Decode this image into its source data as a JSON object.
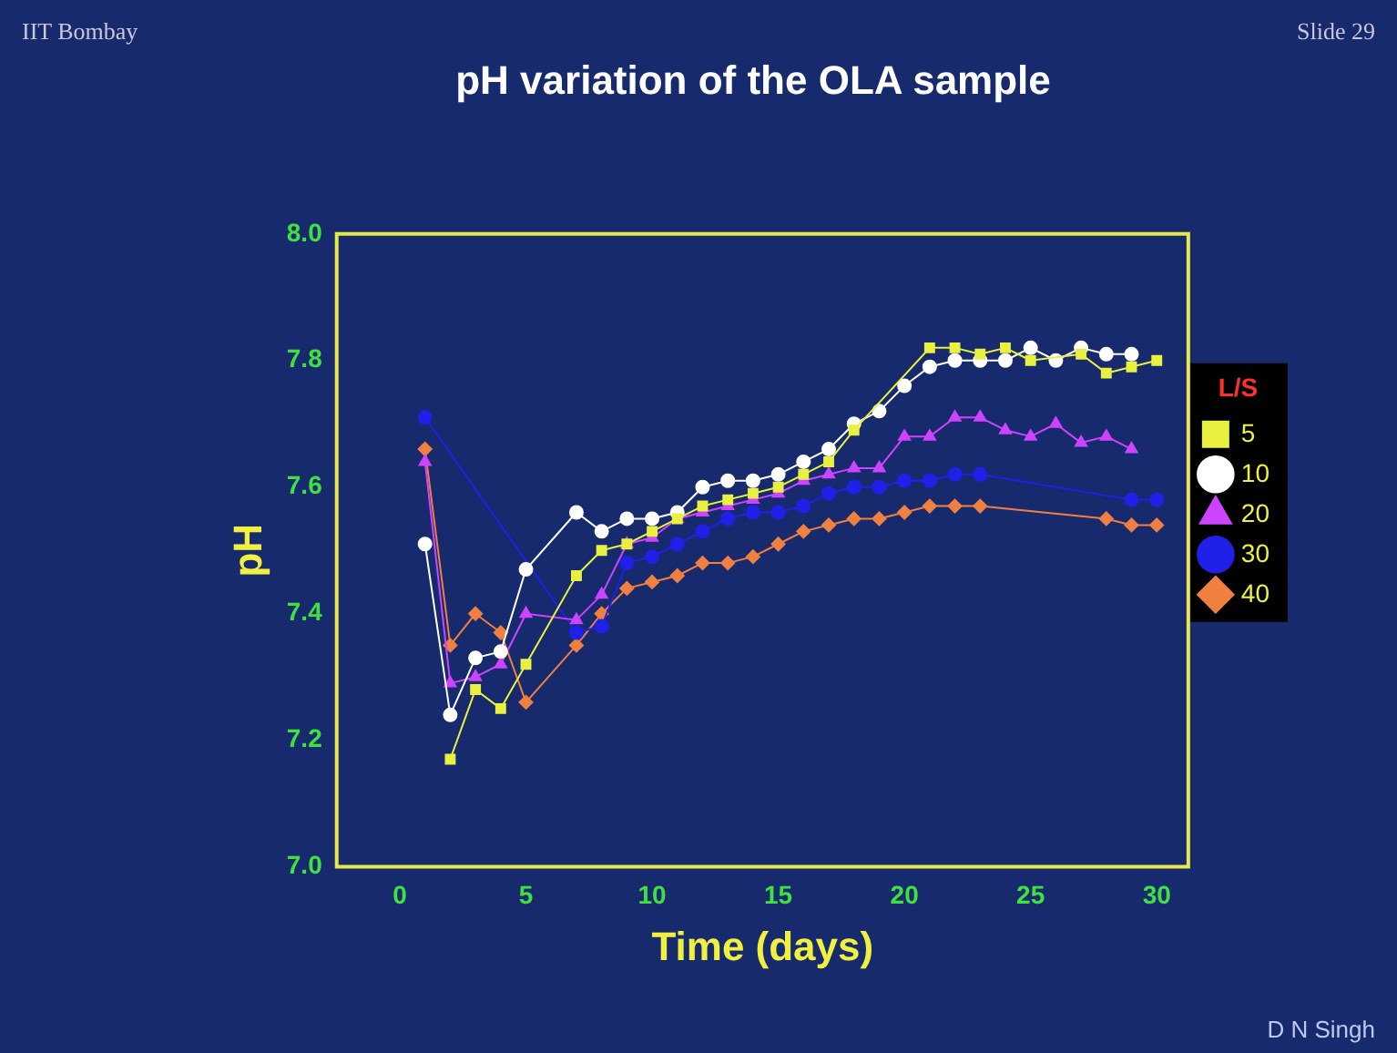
{
  "chart_data": {
    "type": "line",
    "title": "pH variation of the OLA sample",
    "xlabel": "Time (days)",
    "ylabel": "pH",
    "legend_title": "L/S",
    "annotations": [
      "IIT Bombay",
      "Slide 29",
      "D N Singh"
    ],
    "x": [
      1,
      2,
      3,
      4,
      5,
      7,
      8,
      9,
      10,
      11,
      12,
      13,
      14,
      15,
      16,
      17,
      18,
      19,
      20,
      21,
      22,
      23,
      24,
      25,
      26,
      27,
      28,
      29,
      30
    ],
    "series": [
      {
        "name": "5",
        "color": "#e8f040",
        "marker": "square",
        "values": [
          null,
          7.17,
          7.28,
          7.25,
          7.32,
          7.46,
          7.5,
          7.51,
          7.53,
          7.55,
          7.57,
          7.58,
          7.59,
          7.6,
          7.62,
          7.64,
          7.69,
          null,
          null,
          7.82,
          7.82,
          7.81,
          7.82,
          7.8,
          null,
          7.81,
          7.78,
          7.79,
          7.8
        ]
      },
      {
        "name": "10",
        "color": "#ffffff",
        "marker": "circle",
        "values": [
          7.51,
          7.24,
          7.33,
          7.34,
          7.47,
          7.56,
          7.53,
          7.55,
          7.55,
          7.56,
          7.6,
          7.61,
          7.61,
          7.62,
          7.64,
          7.66,
          7.7,
          7.72,
          7.76,
          7.79,
          7.8,
          7.8,
          7.8,
          7.82,
          7.8,
          7.82,
          7.81,
          7.81,
          null
        ]
      },
      {
        "name": "20",
        "color": "#cc44ff",
        "marker": "triangle",
        "values": [
          7.64,
          7.29,
          7.3,
          7.32,
          7.4,
          7.39,
          7.43,
          7.51,
          7.52,
          7.55,
          7.56,
          7.57,
          7.58,
          7.59,
          7.61,
          7.62,
          7.63,
          7.63,
          7.68,
          7.68,
          7.71,
          7.71,
          7.69,
          7.68,
          7.7,
          7.67,
          7.68,
          7.66,
          null
        ]
      },
      {
        "name": "30",
        "color": "#2020e8",
        "marker": "circle",
        "values": [
          7.71,
          null,
          null,
          null,
          null,
          7.37,
          7.38,
          7.48,
          7.49,
          7.51,
          7.53,
          7.55,
          7.56,
          7.56,
          7.57,
          7.59,
          7.6,
          7.6,
          7.61,
          7.61,
          7.62,
          7.62,
          null,
          null,
          null,
          null,
          null,
          7.58,
          7.58
        ]
      },
      {
        "name": "40",
        "color": "#f08040",
        "marker": "diamond",
        "values": [
          7.66,
          7.35,
          7.4,
          7.37,
          7.26,
          7.35,
          7.4,
          7.44,
          7.45,
          7.46,
          7.48,
          7.48,
          7.49,
          7.51,
          7.53,
          7.54,
          7.55,
          7.55,
          7.56,
          7.57,
          7.57,
          7.57,
          null,
          null,
          null,
          null,
          7.55,
          7.54,
          7.54
        ]
      }
    ],
    "xlim": [
      -2.5,
      31.25
    ],
    "xticks": [
      0,
      5,
      10,
      15,
      20,
      25,
      30
    ],
    "ylim": [
      7.0,
      8.0
    ],
    "yticks": [
      {
        "value": 7.0,
        "label": "7.0"
      },
      {
        "value": 7.2,
        "label": "7.2"
      },
      {
        "value": 7.4,
        "label": "7.4"
      },
      {
        "value": 7.6,
        "label": "7.6"
      },
      {
        "value": 7.8,
        "label": "7.8"
      },
      {
        "value": 8.0,
        "label": "8.0"
      }
    ],
    "grid": false,
    "legend": "right"
  }
}
